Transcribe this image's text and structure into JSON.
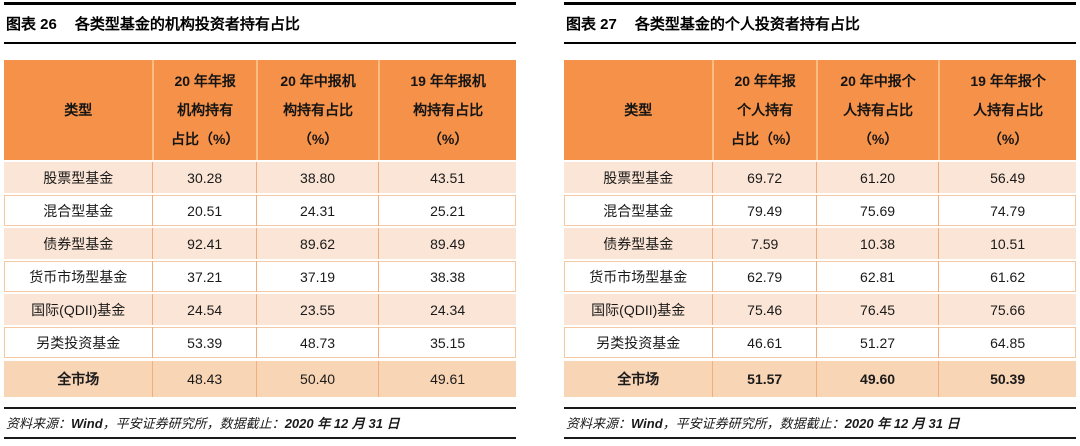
{
  "page": {
    "source_note": {
      "label": "资料来源：",
      "source": "Wind",
      "middle": "，平安证券研究所，数据截止：",
      "date": "2020 年 12 月 31 日"
    }
  },
  "colors": {
    "header_bg": "#F59148",
    "row_peach": "#FBE5D6",
    "total_row_bg": "#F8D5B5",
    "cell_divider": "#F2AE7E",
    "rule_black": "#000000"
  },
  "tables": [
    {
      "caption_tag": "图表 26",
      "caption_title": "各类型基金的机构投资者持有占比",
      "header": {
        "col0": [
          "类型"
        ],
        "col1": [
          "20 年年报",
          "机构持有",
          "占比（%）"
        ],
        "col2": [
          "20 年中报机",
          "构持有占比",
          "（%）"
        ],
        "col3": [
          "19 年年报机",
          "构持有占比",
          "（%）"
        ]
      },
      "rows": [
        [
          "股票型基金",
          "30.28",
          "38.80",
          "43.51"
        ],
        [
          "混合型基金",
          "20.51",
          "24.31",
          "25.21"
        ],
        [
          "债券型基金",
          "92.41",
          "89.62",
          "89.49"
        ],
        [
          "货币市场型基金",
          "37.21",
          "37.19",
          "38.38"
        ],
        [
          "国际(QDII)基金",
          "24.54",
          "23.55",
          "24.34"
        ],
        [
          "另类投资基金",
          "53.39",
          "48.73",
          "35.15"
        ]
      ],
      "total": [
        "全市场",
        "48.43",
        "50.40",
        "49.61"
      ]
    },
    {
      "caption_tag": "图表 27",
      "caption_title": "各类型基金的个人投资者持有占比",
      "header": {
        "col0": [
          "类型"
        ],
        "col1": [
          "20 年年报",
          "个人持有",
          "占比（%）"
        ],
        "col2": [
          "20 年中报个",
          "人持有占比",
          "（%）"
        ],
        "col3": [
          "19 年年报个",
          "人持有占比",
          "（%）"
        ]
      },
      "rows": [
        [
          "股票型基金",
          "69.72",
          "61.20",
          "56.49"
        ],
        [
          "混合型基金",
          "79.49",
          "75.69",
          "74.79"
        ],
        [
          "债券型基金",
          "7.59",
          "10.38",
          "10.51"
        ],
        [
          "货币市场型基金",
          "62.79",
          "62.81",
          "61.62"
        ],
        [
          "国际(QDII)基金",
          "75.46",
          "76.45",
          "75.66"
        ],
        [
          "另类投资基金",
          "46.61",
          "51.27",
          "64.85"
        ]
      ],
      "total": [
        "全市场",
        "51.57",
        "49.60",
        "50.39"
      ]
    }
  ]
}
